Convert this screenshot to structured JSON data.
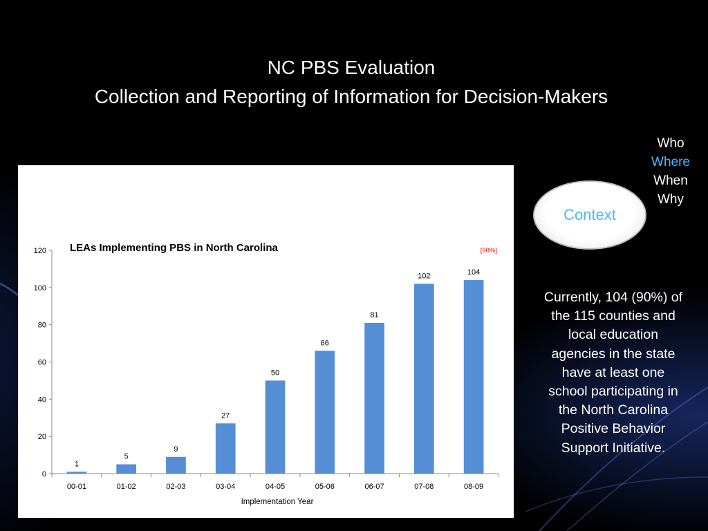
{
  "slide": {
    "title_line1": "NC PBS Evaluation",
    "title_line2": "Collection and Reporting of Information for Decision-Makers",
    "questions": [
      "Who",
      "Where",
      "When",
      "Why"
    ],
    "highlighted_question": "Where",
    "context_label": "Context",
    "body_text": "Currently, 104 (90%) of the 115 counties and local education agencies in the state have at least one school participating in the North Carolina Positive Behavior Support Initiative.",
    "colors": {
      "background": "#000000",
      "text": "#ffffff",
      "highlight": "#4fb7ff",
      "bar": "#558ed5",
      "annotation": "#ff0000"
    }
  },
  "chart_data": {
    "type": "bar",
    "title": "LEAs Implementing PBS in North Carolina",
    "xlabel": "Implementation Year",
    "ylabel": "",
    "categories": [
      "00-01",
      "01-02",
      "02-03",
      "03-04",
      "04-05",
      "05-06",
      "06-07",
      "07-08",
      "08-09"
    ],
    "values": [
      1,
      5,
      9,
      27,
      50,
      66,
      81,
      102,
      104
    ],
    "ylim": [
      0,
      120
    ],
    "yticks": [
      0,
      20,
      40,
      60,
      80,
      100,
      120
    ],
    "annotation": "[90%]",
    "grid": false,
    "legend": "none"
  }
}
